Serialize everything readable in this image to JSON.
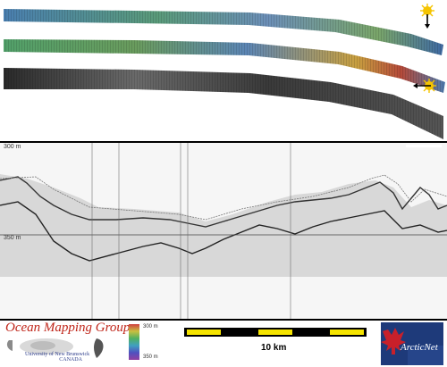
{
  "map_panel": {
    "strips": 3,
    "icons": [
      "sun-compass-icon",
      "sun-compass-icon"
    ]
  },
  "profile_panel": {
    "top_depth": "300 m",
    "mid_depth": "350 m"
  },
  "footer": {
    "org_title": "Ocean Mapping Group",
    "org_line1": "University of New Brunswick",
    "org_line2": "CANADA",
    "legend_top": "300 m",
    "legend_bottom": "350 m",
    "scale_label": "10 km",
    "partner_logo": "ArcticNet"
  },
  "colors": {
    "org_red": "#c0261a",
    "scale_yellow": "#f5e400",
    "arcticnet_blue": "#1e3a7a"
  }
}
